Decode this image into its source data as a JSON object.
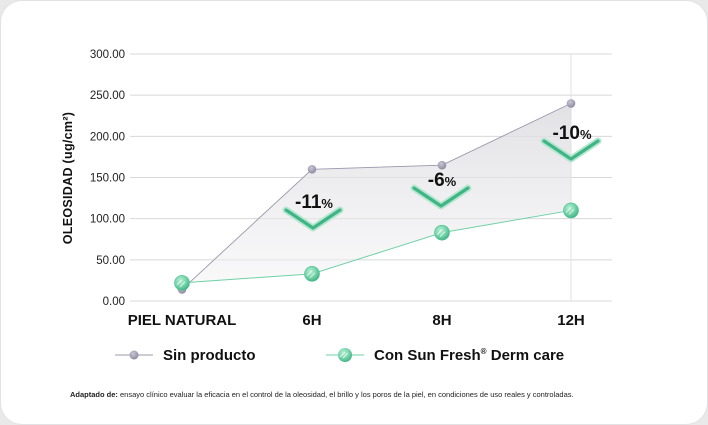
{
  "chart_data": {
    "type": "line",
    "ylabel": "OLEOSIDAD (ug/cm²)",
    "xlabel": "",
    "ylim": [
      0,
      300
    ],
    "yticks": [
      "0.00",
      "50.00",
      "100.00",
      "150.00",
      "200.00",
      "250.00",
      "300.00"
    ],
    "categories": [
      "PIEL NATURAL",
      "6H",
      "8H",
      "12H"
    ],
    "grid": true,
    "legend_position": "bottom",
    "series": [
      {
        "name": "Sin producto",
        "values": [
          14,
          160,
          165,
          240
        ],
        "color": "#9b98ab"
      },
      {
        "name": "Con Sun Fresh® Derm care",
        "values": [
          22,
          33,
          83,
          110
        ],
        "color": "#6fd1a6"
      }
    ],
    "annotations": [
      {
        "text": "-11%",
        "category": "6H"
      },
      {
        "text": "-6%",
        "category": "8H"
      },
      {
        "text": "-10%",
        "category": "12H"
      }
    ]
  },
  "legend": {
    "series1": "Sin producto",
    "series2_main": "Con Sun Fresh",
    "series2_mark": "®",
    "series2_tail": " Derm care"
  },
  "footnote": {
    "bold": "Adaptado de:",
    "text": " ensayo clínico evaluar la eficacia en el control de la oleosidad, el brillo y los poros de la piel, en condiciones de uso reales y controladas."
  }
}
